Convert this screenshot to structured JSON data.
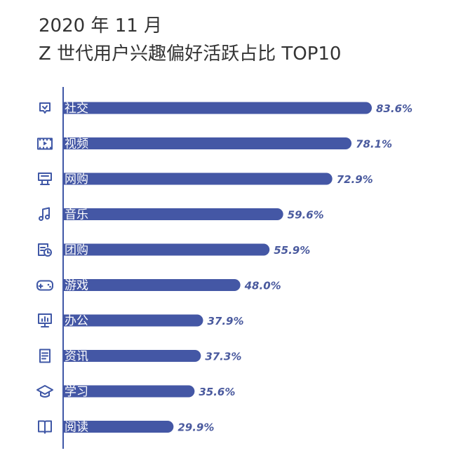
{
  "title": {
    "line1": "2020 年 11 月",
    "line2": "Z 世代用户兴趣偏好活跃占比 TOP10"
  },
  "colors": {
    "bar": "#4457a5",
    "axis": "#3f57a6",
    "value_text": "#4a5a9e"
  },
  "chart_data": {
    "type": "bar",
    "orientation": "horizontal",
    "title": "Z 世代用户兴趣偏好活跃占比 TOP10",
    "categories": [
      "社交",
      "视频",
      "网购",
      "音乐",
      "团购",
      "游戏",
      "办公",
      "资讯",
      "学习",
      "阅读"
    ],
    "values": [
      83.6,
      78.1,
      72.9,
      59.6,
      55.9,
      48.0,
      37.9,
      37.3,
      35.6,
      29.9
    ],
    "value_labels": [
      "83.6%",
      "78.1%",
      "72.9%",
      "59.6%",
      "55.9%",
      "48.0%",
      "37.9%",
      "37.3%",
      "35.6%",
      "29.9%"
    ],
    "icons": [
      "chat-icon",
      "film-icon",
      "shopping-icon",
      "music-icon",
      "group-buy-icon",
      "gamepad-icon",
      "monitor-icon",
      "news-icon",
      "graduation-cap-icon",
      "book-icon"
    ],
    "xlim": [
      0,
      100
    ],
    "grid": false,
    "legend": "none"
  }
}
